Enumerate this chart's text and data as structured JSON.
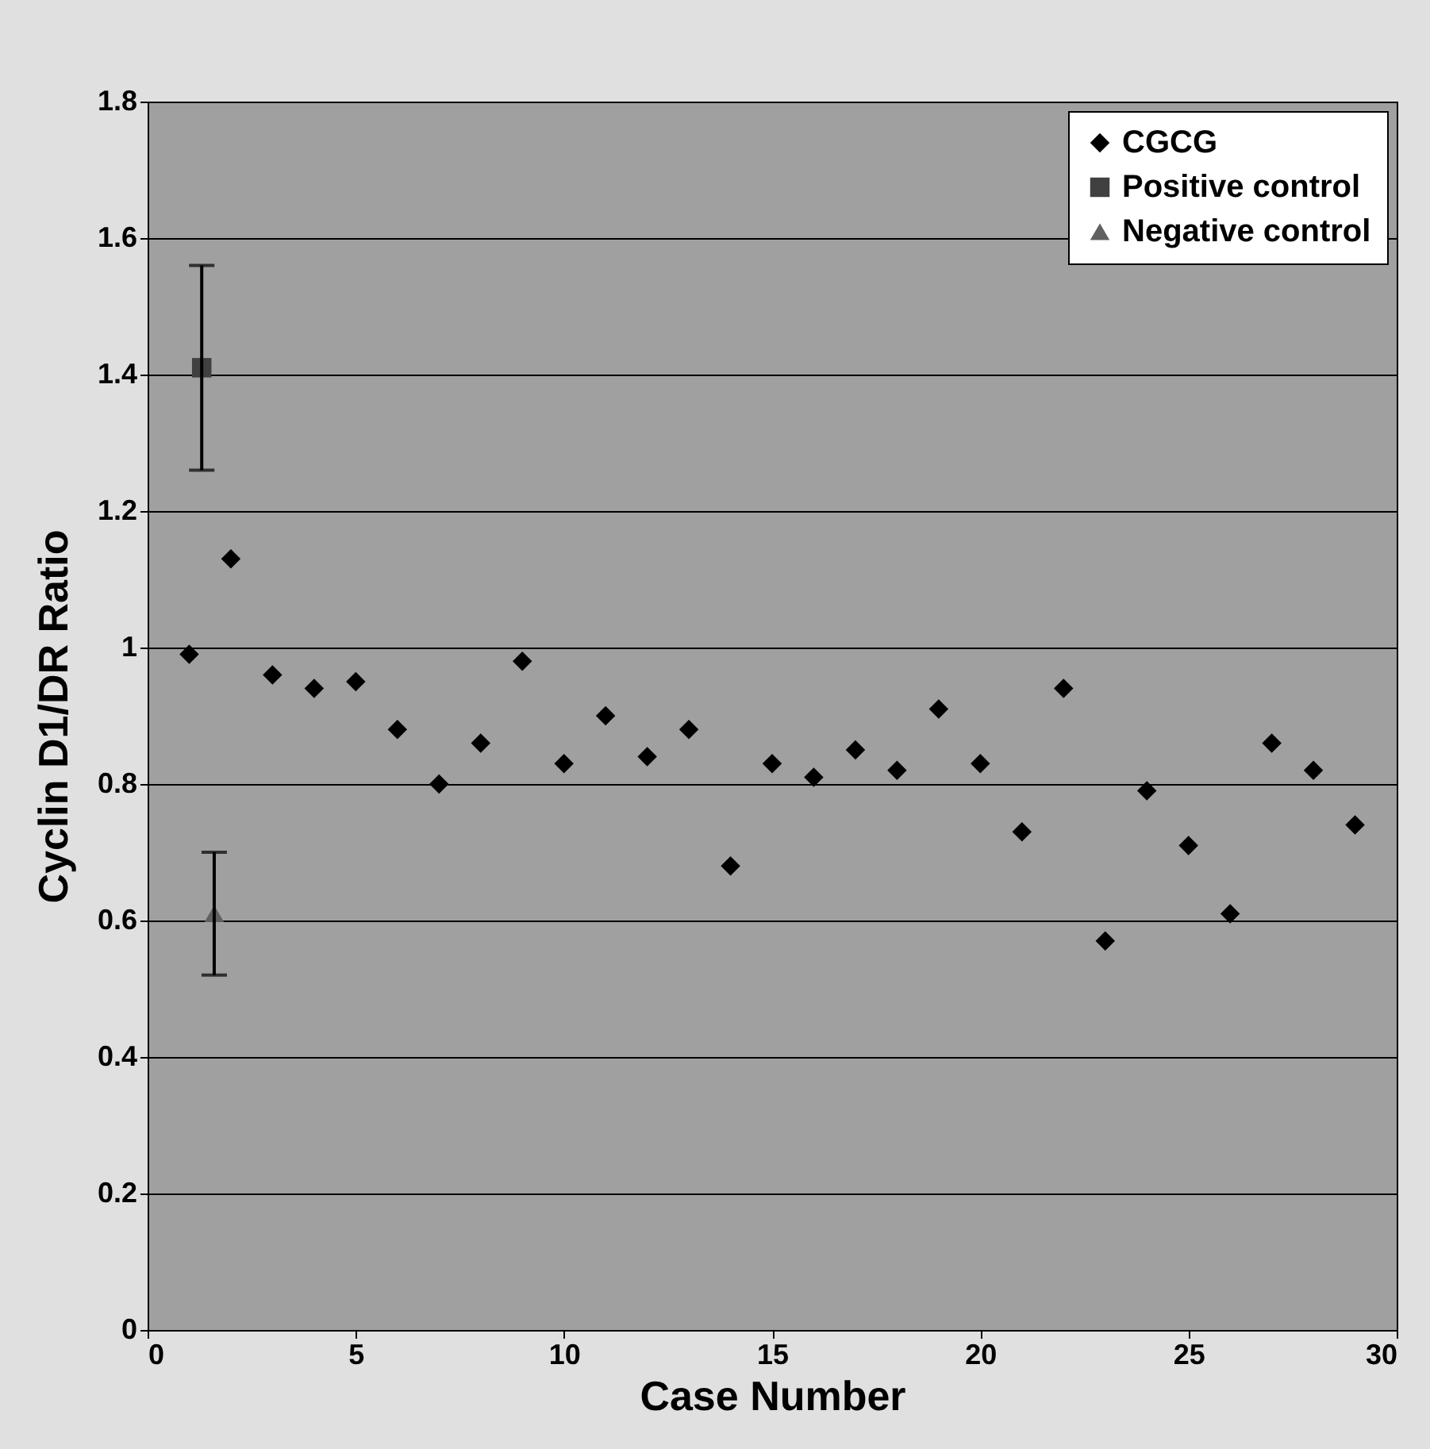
{
  "chart_data": {
    "type": "scatter",
    "xlabel": "Case Number",
    "ylabel": "Cyclin D1/DR Ratio",
    "xlim": [
      0,
      30
    ],
    "xticks": [
      0,
      5,
      10,
      15,
      20,
      25,
      30
    ],
    "ylim": [
      0,
      1.8
    ],
    "yticks": [
      0,
      0.2,
      0.4,
      0.6,
      0.8,
      1,
      1.2,
      1.4,
      1.6,
      1.8
    ],
    "grid": "y",
    "legend": "top right",
    "series": [
      {
        "name": "CGCG",
        "color": "#000000",
        "marker": "diamond",
        "x": [
          1,
          2,
          3,
          4,
          5,
          6,
          7,
          8,
          9,
          10,
          11,
          12,
          13,
          14,
          15,
          16,
          17,
          18,
          19,
          20,
          21,
          22,
          23,
          24,
          25,
          26,
          27,
          28,
          29
        ],
        "values": [
          0.99,
          1.13,
          0.96,
          0.94,
          0.95,
          0.88,
          0.8,
          0.86,
          0.98,
          0.83,
          0.9,
          0.84,
          0.88,
          0.68,
          0.83,
          0.81,
          0.85,
          0.82,
          0.91,
          0.83,
          0.73,
          0.94,
          0.57,
          0.79,
          0.71,
          0.61,
          0.86,
          0.82,
          0.74
        ]
      },
      {
        "name": "Positive control",
        "color": "#404040",
        "marker": "square",
        "x": [
          1.3
        ],
        "values": [
          1.41
        ],
        "errors": [
          [
            1.26,
            1.56
          ]
        ]
      },
      {
        "name": "Negative control",
        "color": "#606060",
        "marker": "triangle",
        "x": [
          1.6
        ],
        "values": [
          0.61
        ],
        "errors": [
          [
            0.52,
            0.7
          ]
        ]
      }
    ]
  }
}
